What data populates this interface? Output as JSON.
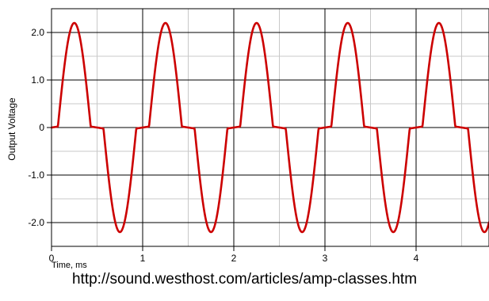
{
  "caption": "http://sound.westhost.com/articles/amp-classes.htm",
  "chart_data": {
    "type": "line",
    "title": "",
    "xlabel": "Time, ms",
    "ylabel": "Output Voltage",
    "xlim": [
      0,
      4.8
    ],
    "ylim": [
      -2.5,
      2.5
    ],
    "x_major_ticks": [
      0,
      1,
      2,
      3,
      4
    ],
    "x_tick_labels": [
      "0",
      "1",
      "2",
      "3",
      "4"
    ],
    "x_minor_ticks": [
      0.5,
      1.5,
      2.5,
      3.5,
      4.5
    ],
    "y_ticks": [
      2.0,
      1.0,
      0,
      -1.0,
      -2.0
    ],
    "y_tick_labels": [
      "2.0",
      "1.0",
      "0",
      "-1.0",
      "-2.0"
    ],
    "y_minor_ticks": [
      1.5,
      0.5,
      -0.5,
      -1.5
    ],
    "grid": true,
    "series": [
      {
        "color": "#cc0000",
        "period_ms": 1.0,
        "amplitude": 2.2,
        "crossover_deadband": 0.07,
        "x": [
          0,
          0.05,
          0.1,
          0.15,
          0.2,
          0.25,
          0.3,
          0.35,
          0.4,
          0.45,
          0.5,
          0.55,
          0.6,
          0.65,
          0.7,
          0.75,
          0.8,
          0.85,
          0.9,
          0.95,
          1.0
        ],
        "values": [
          0,
          0.02,
          0.88,
          1.62,
          2.09,
          2.2,
          2.09,
          1.62,
          0.88,
          0.02,
          0,
          -0.02,
          -0.88,
          -1.62,
          -2.09,
          -2.2,
          -2.09,
          -1.62,
          -0.88,
          -0.02,
          0
        ]
      }
    ]
  },
  "colors": {
    "grid_major": "#000000",
    "grid_minor": "#c8c8c8",
    "trace": "#cc0000",
    "background": "#ffffff"
  }
}
